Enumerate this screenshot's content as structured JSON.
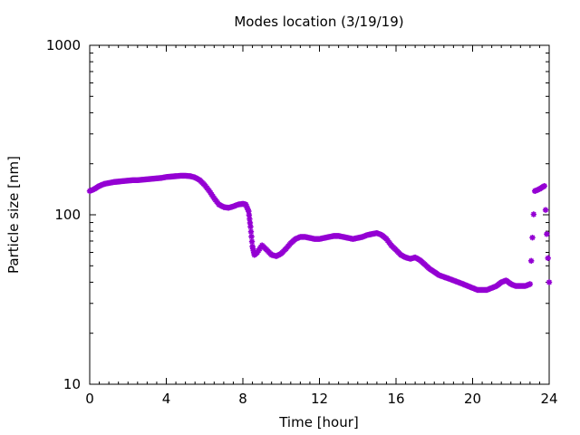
{
  "chart_data": {
    "type": "scatter",
    "title": "Modes location (3/19/19)",
    "xlabel": "Time [hour]",
    "ylabel": "Particle size [nm]",
    "xlim": [
      0,
      24
    ],
    "ylim": [
      10,
      1000
    ],
    "yscale": "log",
    "grid": false,
    "legend": "none",
    "x_ticks": [
      "0",
      "4",
      "8",
      "12",
      "16",
      "20",
      "24"
    ],
    "y_ticks": [
      "10",
      "100",
      "1000"
    ],
    "marker_color": "#9400d3",
    "marker": "star",
    "series": [
      {
        "x": [
          0.0,
          0.25,
          0.5,
          0.75,
          1.0,
          1.25,
          1.5,
          1.75,
          2.0,
          2.25,
          2.5,
          2.75,
          3.0,
          3.25,
          3.5,
          3.75,
          4.0,
          4.25,
          4.5,
          4.75,
          5.0,
          5.25,
          5.5,
          5.75,
          6.0,
          6.25,
          6.5,
          6.75,
          7.0,
          7.25,
          7.5,
          7.75,
          8.0,
          8.15,
          8.3,
          8.4,
          8.5,
          8.6,
          8.75,
          9.0,
          9.25,
          9.5,
          9.75,
          10.0,
          10.25,
          10.5,
          10.75,
          11.0,
          11.25,
          11.5,
          11.75,
          12.0,
          12.25,
          12.5,
          12.75,
          13.0,
          13.25,
          13.5,
          13.75,
          14.0,
          14.25,
          14.5,
          14.75,
          15.0,
          15.25,
          15.5,
          15.75,
          16.0,
          16.25,
          16.5,
          16.75,
          17.0,
          17.25,
          17.5,
          17.75,
          18.0,
          18.25,
          18.5,
          18.75,
          19.0,
          19.25,
          19.5,
          19.75,
          20.0,
          20.25,
          20.5,
          20.75,
          21.0,
          21.25,
          21.5,
          21.75,
          22.0,
          22.25,
          22.5,
          22.75,
          23.0,
          23.25,
          23.5,
          23.75,
          24.0
        ],
        "y": [
          138,
          142,
          148,
          152,
          154,
          156,
          157,
          158,
          159,
          160,
          160,
          161,
          162,
          163,
          164,
          165,
          167,
          168,
          169,
          170,
          170,
          169,
          166,
          160,
          150,
          138,
          125,
          115,
          111,
          110,
          112,
          115,
          116,
          115,
          105,
          85,
          65,
          58,
          60,
          66,
          62,
          58,
          57,
          59,
          63,
          68,
          72,
          74,
          74,
          73,
          72,
          72,
          73,
          74,
          75,
          75,
          74,
          73,
          72,
          73,
          74,
          76,
          77,
          78,
          76,
          72,
          66,
          62,
          58,
          56,
          55,
          56,
          54,
          51,
          48,
          46,
          44,
          43,
          42,
          41,
          40,
          39,
          38,
          37,
          36,
          36,
          36,
          37,
          38,
          40,
          41,
          39,
          38,
          38,
          38,
          39,
          138,
          142,
          148,
          40
        ]
      }
    ]
  }
}
